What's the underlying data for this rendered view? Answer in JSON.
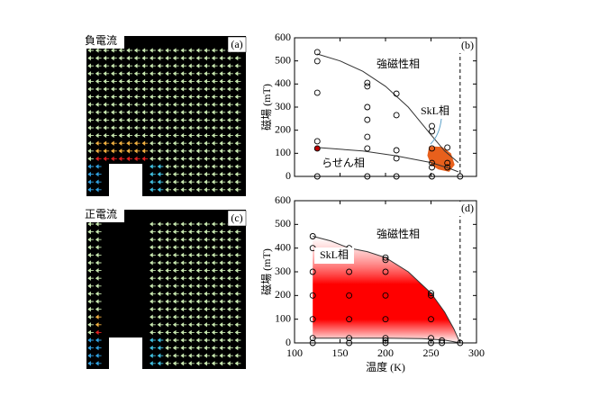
{
  "panels": {
    "a": {
      "label": "(a)",
      "caption": "負電流"
    },
    "c": {
      "label": "(c)",
      "caption": "正電流"
    }
  },
  "chart_data": [
    {
      "type": "scatter",
      "label": "(b)",
      "y_label": "磁場 (mT)",
      "xlim": [
        100,
        300
      ],
      "xticks": [
        100,
        150,
        200,
        250,
        300
      ],
      "xtick_labels": false,
      "ylim": [
        0,
        600
      ],
      "yticks": [
        0,
        100,
        200,
        300,
        400,
        500,
        600
      ],
      "vlines": [
        282
      ],
      "annotations": [
        "強磁性相",
        "SkL相",
        "らせん相"
      ],
      "regions": [
        {
          "color": "#e8601c",
          "x": [
            248,
            262,
            272,
            276,
            270,
            258,
            250,
            246
          ],
          "values": [
            130,
            128,
            100,
            50,
            20,
            30,
            50,
            90
          ]
        }
      ],
      "boundaries": [
        {
          "x": [
            125,
            150,
            175,
            200,
            225,
            250,
            265,
            280
          ],
          "values": [
            530,
            500,
            455,
            390,
            300,
            180,
            110,
            60
          ]
        },
        {
          "x": [
            125,
            175,
            210,
            250,
            270,
            280
          ],
          "values": [
            125,
            110,
            90,
            60,
            35,
            20
          ]
        }
      ],
      "series": [
        {
          "color": "#000000",
          "x": [
            125,
            125,
            125,
            125,
            125,
            180,
            180,
            180,
            180,
            180,
            180,
            180,
            212,
            212,
            212,
            212,
            212,
            251,
            251,
            251,
            251,
            251,
            251,
            268,
            268,
            268,
            282
          ],
          "values": [
            538,
            499,
            362,
            152,
            0,
            405,
            390,
            300,
            245,
            171,
            121,
            0,
            358,
            265,
            113,
            78,
            0,
            218,
            195,
            121,
            58,
            39,
            0,
            125,
            58,
            39,
            0
          ]
        },
        {
          "color": "#c00000",
          "x": [
            125
          ],
          "values": [
            121
          ]
        }
      ]
    },
    {
      "type": "scatter",
      "label": "(d)",
      "y_label": "磁場 (mT)",
      "x_label": "温度 (K)",
      "xlim": [
        100,
        300
      ],
      "xticks": [
        100,
        150,
        200,
        250,
        300
      ],
      "xtick_labels": true,
      "ylim": [
        0,
        600
      ],
      "yticks": [
        0,
        100,
        200,
        300,
        400,
        500,
        600
      ],
      "vlines": [
        282
      ],
      "annotations": [
        "強磁性相",
        "SkL相"
      ],
      "gradient_color": "#ff0000",
      "boundaries": [
        {
          "x": [
            120,
            140,
            160,
            180,
            200,
            225,
            250,
            265,
            275,
            282
          ],
          "values": [
            450,
            430,
            400,
            385,
            360,
            300,
            210,
            130,
            60,
            0
          ]
        },
        {
          "x": [
            120,
            160,
            200,
            240,
            265,
            282
          ],
          "values": [
            20,
            20,
            20,
            18,
            12,
            0
          ]
        }
      ],
      "series": [
        {
          "color": "#000000",
          "x": [
            120,
            120,
            120,
            120,
            120,
            120,
            120,
            160,
            160,
            160,
            160,
            160,
            160,
            200,
            200,
            200,
            200,
            200,
            200,
            200,
            200,
            250,
            250,
            250,
            250,
            250,
            262,
            262,
            282
          ],
          "values": [
            450,
            400,
            300,
            200,
            100,
            20,
            0,
            400,
            300,
            200,
            100,
            20,
            0,
            350,
            300,
            200,
            100,
            20,
            10,
            0,
            360,
            210,
            200,
            100,
            20,
            0,
            10,
            0,
            0
          ]
        }
      ]
    }
  ]
}
